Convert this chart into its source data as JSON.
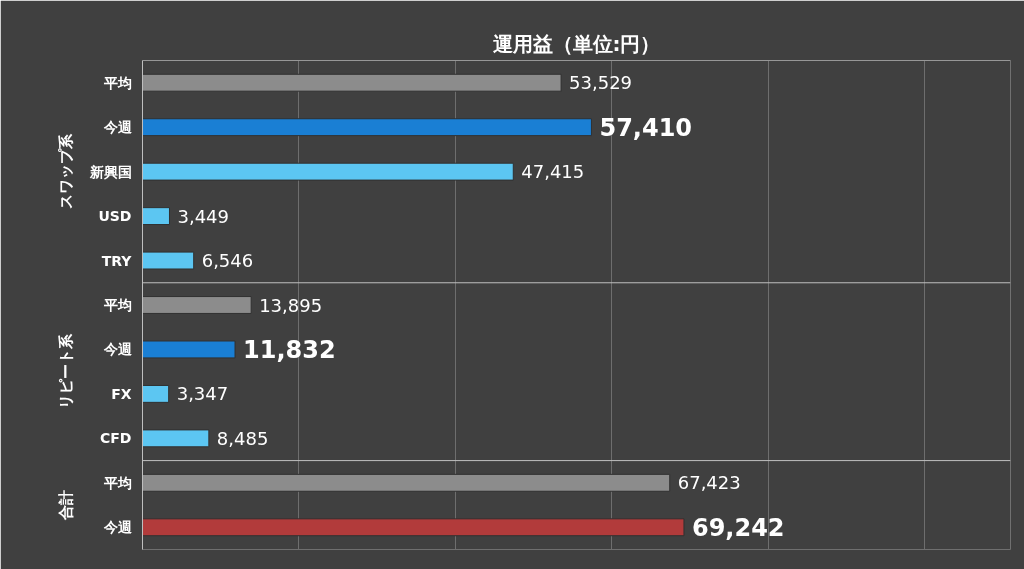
{
  "chart_data": {
    "type": "bar",
    "orientation": "horizontal",
    "title": "運用益（単位:円）",
    "categories": [
      "平均",
      "今週",
      "新興国",
      "USD",
      "TRY",
      "平均",
      "今週",
      "FX",
      "CFD",
      "平均",
      "今週"
    ],
    "values": [
      53529,
      57410,
      47415,
      3449,
      6546,
      13895,
      11832,
      3347,
      8485,
      67423,
      69242
    ],
    "colors": [
      "#8c8c8c",
      "#1a7fd4",
      "#5cc6f2",
      "#5cc6f2",
      "#5cc6f2",
      "#8c8c8c",
      "#1a7fd4",
      "#5cc6f2",
      "#5cc6f2",
      "#8c8c8c",
      "#b23b3b"
    ],
    "value_labels": [
      "53,529",
      "57,410",
      "47,415",
      "3,449",
      "6,546",
      "13,895",
      "11,832",
      "3,347",
      "8,485",
      "67,423",
      "69,242"
    ],
    "annotations": [
      "スワップ系",
      "リピート系",
      "合計"
    ],
    "xlim": [
      0,
      111000
    ],
    "xticks": [
      {
        "value": 20000,
        "label": null
      },
      {
        "value": 40000,
        "label": null
      },
      {
        "value": 60000,
        "label": null
      },
      {
        "value": 80000,
        "label": null
      },
      {
        "value": 100000,
        "label": null
      }
    ],
    "grid": "x",
    "tick_labels": "y"
  }
}
